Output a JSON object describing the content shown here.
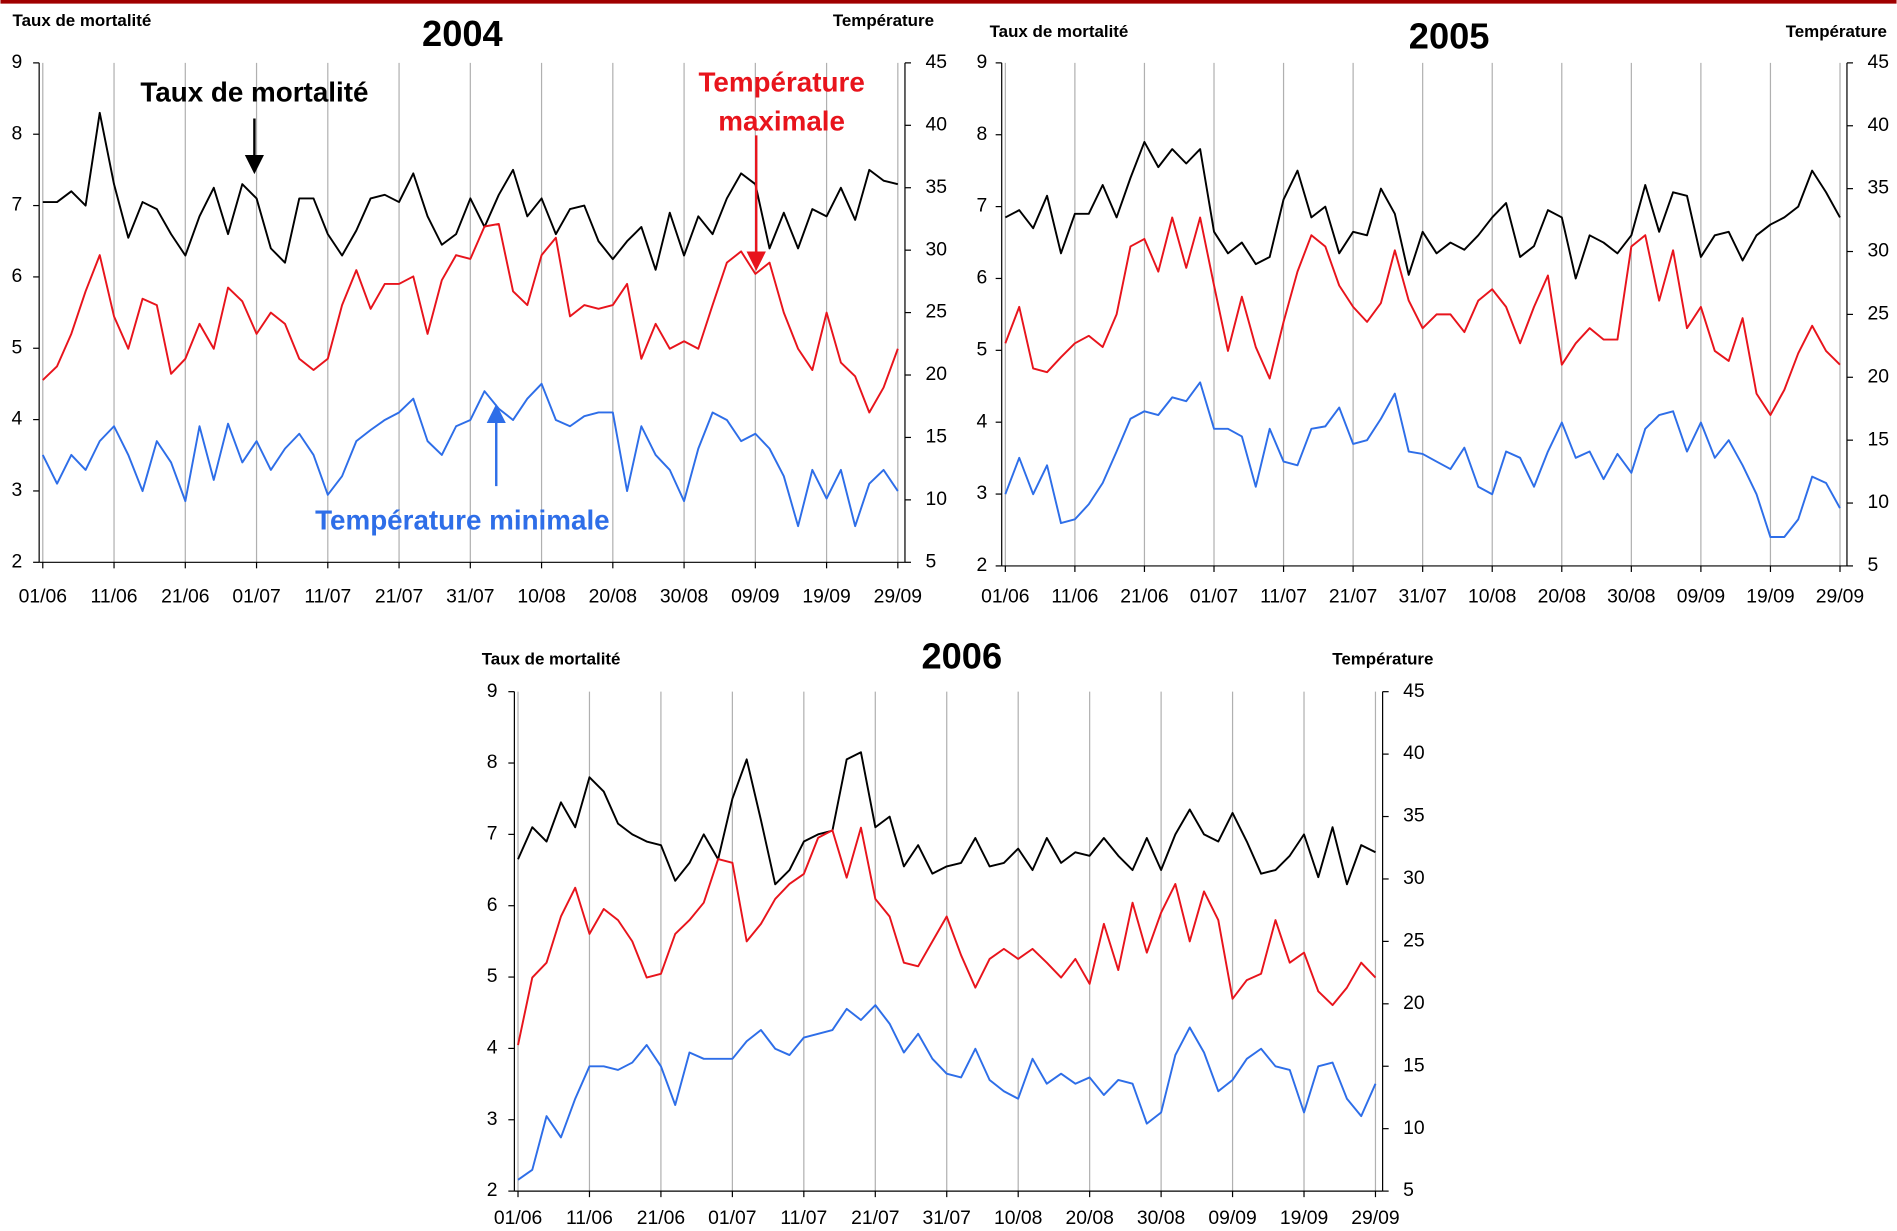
{
  "chart_data": [
    {
      "type": "line",
      "title": "2004",
      "y_label": "Taux de mortalité",
      "y2_label": "Température",
      "categories": [
        "01/06",
        null,
        null,
        null,
        null,
        "11/06",
        null,
        null,
        null,
        null,
        "21/06",
        null,
        null,
        null,
        null,
        "01/07",
        null,
        null,
        null,
        null,
        "11/07",
        null,
        null,
        null,
        null,
        "21/07",
        null,
        null,
        null,
        null,
        "31/07",
        null,
        null,
        null,
        null,
        "10/08",
        null,
        null,
        null,
        null,
        "20/08",
        null,
        null,
        null,
        null,
        "30/08",
        null,
        null,
        null,
        null,
        "09/09",
        null,
        null,
        null,
        null,
        "19/09",
        null,
        null,
        null,
        null,
        "29/09"
      ],
      "ylim": [
        2,
        9
      ],
      "yticks": [
        2,
        3,
        4,
        5,
        6,
        7,
        8,
        9
      ],
      "y2lim": [
        5,
        45
      ],
      "y2ticks": [
        5,
        10,
        15,
        20,
        25,
        30,
        35,
        40,
        45
      ],
      "xgrid": true,
      "series": [
        {
          "color": "#000000",
          "values": [
            7.05,
            7.05,
            7.2,
            7.0,
            8.3,
            7.3,
            6.55,
            7.05,
            6.95,
            6.6,
            6.3,
            6.85,
            7.25,
            6.6,
            7.3,
            7.1,
            6.4,
            6.2,
            7.1,
            7.1,
            6.6,
            6.3,
            6.65,
            7.1,
            7.15,
            7.05,
            7.45,
            6.85,
            6.45,
            6.6,
            7.1,
            6.7,
            7.15,
            7.5,
            6.85,
            7.1,
            6.6,
            6.95,
            7.0,
            6.5,
            6.25,
            6.5,
            6.7,
            6.1,
            6.9,
            6.3,
            6.85,
            6.6,
            7.1,
            7.45,
            7.3,
            6.4,
            6.9,
            6.4,
            6.95,
            6.85,
            7.25,
            6.8,
            7.5,
            7.35,
            7.3
          ]
        },
        {
          "color": "#e8141c",
          "axis": "y2",
          "values": [
            19.6,
            20.7,
            23.3,
            26.7,
            29.6,
            24.7,
            22.1,
            26.1,
            25.6,
            20.1,
            21.3,
            24.1,
            22.1,
            27,
            25.9,
            23.3,
            25,
            24.1,
            21.3,
            20.4,
            21.3,
            25.6,
            28.4,
            25.3,
            27.3,
            27.3,
            27.9,
            23.3,
            27.6,
            29.6,
            29.3,
            31.9,
            32.1,
            26.7,
            25.6,
            29.6,
            31,
            24.7,
            25.6,
            25.3,
            25.6,
            27.3,
            21.3,
            24.1,
            22.1,
            22.7,
            22.1,
            25.6,
            29,
            29.9,
            28.1,
            29,
            25,
            22.1,
            20.4,
            25,
            21,
            19.9,
            17,
            19,
            22.1
          ]
        },
        {
          "color": "#2e6ee8",
          "axis": "y2",
          "values": [
            13.6,
            11.3,
            13.6,
            12.4,
            14.7,
            15.9,
            13.6,
            10.7,
            14.7,
            13,
            9.9,
            15.9,
            11.6,
            16.1,
            13,
            14.7,
            12.4,
            14.1,
            15.3,
            13.6,
            10.4,
            11.9,
            14.7,
            15.6,
            16.4,
            17,
            18.1,
            14.7,
            13.6,
            15.9,
            16.4,
            18.7,
            17.3,
            16.4,
            18.1,
            19.3,
            16.4,
            15.9,
            16.7,
            17,
            17,
            10.7,
            15.9,
            13.6,
            12.4,
            9.9,
            14.1,
            17,
            16.4,
            14.7,
            15.3,
            14.1,
            11.9,
            7.9,
            12.4,
            10.1,
            12.4,
            7.9,
            11.3,
            12.4,
            10.7
          ]
        }
      ],
      "annotations": [
        {
          "lines": [
            "Taux de mortalité"
          ],
          "color": "#000000"
        },
        {
          "lines": [
            "Température",
            "maximale"
          ],
          "color": "#e8141c"
        },
        {
          "lines": [
            "Température minimale"
          ],
          "color": "#2e6ee8"
        }
      ]
    },
    {
      "type": "line",
      "title": "2005",
      "y_label": "Taux de mortalité",
      "y2_label": "Température",
      "categories": [
        "01/06",
        null,
        null,
        null,
        null,
        "11/06",
        null,
        null,
        null,
        null,
        "21/06",
        null,
        null,
        null,
        null,
        "01/07",
        null,
        null,
        null,
        null,
        "11/07",
        null,
        null,
        null,
        null,
        "21/07",
        null,
        null,
        null,
        null,
        "31/07",
        null,
        null,
        null,
        null,
        "10/08",
        null,
        null,
        null,
        null,
        "20/08",
        null,
        null,
        null,
        null,
        "30/08",
        null,
        null,
        null,
        null,
        "09/09",
        null,
        null,
        null,
        null,
        "19/09",
        null,
        null,
        null,
        null,
        "29/09"
      ],
      "ylim": [
        2,
        9
      ],
      "yticks": [
        2,
        3,
        4,
        5,
        6,
        7,
        8,
        9
      ],
      "y2lim": [
        5,
        45
      ],
      "y2ticks": [
        5,
        10,
        15,
        20,
        25,
        30,
        35,
        40,
        45
      ],
      "xgrid": true,
      "series": [
        {
          "color": "#000000",
          "values": [
            6.85,
            6.95,
            6.7,
            7.15,
            6.35,
            6.9,
            6.9,
            7.3,
            6.85,
            7.4,
            7.9,
            7.55,
            7.8,
            7.6,
            7.8,
            6.65,
            6.35,
            6.5,
            6.2,
            6.3,
            7.1,
            7.5,
            6.85,
            7.0,
            6.35,
            6.65,
            6.6,
            7.25,
            6.9,
            6.05,
            6.65,
            6.35,
            6.5,
            6.4,
            6.6,
            6.85,
            7.05,
            6.3,
            6.45,
            6.95,
            6.85,
            6.0,
            6.6,
            6.5,
            6.35,
            6.6,
            7.3,
            6.65,
            7.2,
            7.15,
            6.3,
            6.6,
            6.65,
            6.25,
            6.6,
            6.75,
            6.85,
            7.0,
            7.5,
            7.2,
            6.85
          ]
        },
        {
          "color": "#e8141c",
          "axis": "y2",
          "values": [
            22.7,
            25.6,
            20.7,
            20.4,
            21.6,
            22.7,
            23.3,
            22.4,
            25,
            30.4,
            31,
            28.4,
            32.7,
            28.7,
            32.7,
            27.3,
            22.1,
            26.4,
            22.4,
            19.9,
            24.4,
            28.4,
            31.3,
            30.4,
            27.3,
            25.6,
            24.4,
            25.9,
            30.1,
            26.1,
            23.9,
            25,
            25,
            23.6,
            26.1,
            27,
            25.6,
            22.7,
            25.6,
            28.1,
            21,
            22.7,
            23.9,
            23,
            23,
            30.4,
            31.3,
            26.1,
            30.1,
            23.9,
            25.6,
            22.1,
            21.3,
            24.7,
            18.7,
            17,
            19,
            21.9,
            24.1,
            22.1,
            21
          ]
        },
        {
          "color": "#2e6ee8",
          "axis": "y2",
          "values": [
            10.7,
            13.6,
            10.7,
            13,
            8.4,
            8.7,
            9.9,
            11.6,
            14.1,
            16.7,
            17.3,
            17,
            18.4,
            18.1,
            19.6,
            15.9,
            15.9,
            15.3,
            11.3,
            15.9,
            13.3,
            13,
            15.9,
            16.1,
            17.6,
            14.7,
            15,
            16.7,
            18.7,
            14.1,
            13.9,
            13.3,
            12.7,
            14.4,
            11.3,
            10.7,
            14.1,
            13.6,
            11.3,
            14.1,
            16.4,
            13.6,
            14.1,
            11.9,
            13.9,
            12.4,
            15.9,
            17,
            17.3,
            14.1,
            16.4,
            13.6,
            15,
            13,
            10.7,
            7.3,
            7.3,
            8.7,
            12.1,
            11.6,
            9.6
          ]
        }
      ]
    },
    {
      "type": "line",
      "title": "2006",
      "y_label": "Taux de mortalité",
      "y2_label": "Température",
      "categories": [
        "01/06",
        null,
        null,
        null,
        null,
        "11/06",
        null,
        null,
        null,
        null,
        "21/06",
        null,
        null,
        null,
        null,
        "01/07",
        null,
        null,
        null,
        null,
        "11/07",
        null,
        null,
        null,
        null,
        "21/07",
        null,
        null,
        null,
        null,
        "31/07",
        null,
        null,
        null,
        null,
        "10/08",
        null,
        null,
        null,
        null,
        "20/08",
        null,
        null,
        null,
        null,
        "30/08",
        null,
        null,
        null,
        null,
        "09/09",
        null,
        null,
        null,
        null,
        "19/09",
        null,
        null,
        null,
        null,
        "29/09"
      ],
      "ylim": [
        2,
        9
      ],
      "yticks": [
        2,
        3,
        4,
        5,
        6,
        7,
        8,
        9
      ],
      "y2lim": [
        5,
        45
      ],
      "y2ticks": [
        5,
        10,
        15,
        20,
        25,
        30,
        35,
        40,
        45
      ],
      "xgrid": true,
      "series": [
        {
          "color": "#000000",
          "values": [
            6.65,
            7.1,
            6.9,
            7.45,
            7.1,
            7.8,
            7.6,
            7.15,
            7.0,
            6.9,
            6.85,
            6.35,
            6.6,
            7.0,
            6.65,
            7.5,
            8.05,
            7.2,
            6.3,
            6.5,
            6.9,
            7.0,
            7.05,
            8.05,
            8.15,
            7.1,
            7.25,
            6.55,
            6.85,
            6.45,
            6.55,
            6.6,
            6.95,
            6.55,
            6.6,
            6.8,
            6.5,
            6.95,
            6.6,
            6.75,
            6.7,
            6.95,
            6.7,
            6.5,
            6.95,
            6.5,
            7.0,
            7.35,
            7.0,
            6.9,
            7.3,
            6.9,
            6.45,
            6.5,
            6.7,
            7.0,
            6.4,
            7.1,
            6.3,
            6.85,
            6.75
          ]
        },
        {
          "color": "#e8141c",
          "axis": "y2",
          "values": [
            16.7,
            22.1,
            23.3,
            27,
            29.3,
            25.6,
            27.6,
            26.7,
            25,
            22.1,
            22.4,
            25.6,
            26.7,
            28.1,
            31.6,
            31.3,
            25,
            26.4,
            28.4,
            29.6,
            30.4,
            33.3,
            33.9,
            30.1,
            34.1,
            28.4,
            27,
            23.3,
            23,
            25,
            27,
            23.9,
            21.3,
            23.6,
            24.4,
            23.6,
            24.4,
            23.3,
            22.1,
            23.6,
            21.6,
            26.4,
            22.7,
            28.1,
            24.1,
            27.3,
            29.6,
            25,
            29,
            26.7,
            20.4,
            21.9,
            22.4,
            26.7,
            23.3,
            24.1,
            21,
            19.9,
            21.3,
            23.3,
            22.1
          ]
        },
        {
          "color": "#2e6ee8",
          "axis": "y2",
          "values": [
            5.9,
            6.7,
            11,
            9.3,
            12.4,
            15,
            15,
            14.7,
            15.3,
            16.7,
            15,
            11.9,
            16.1,
            15.6,
            15.6,
            15.6,
            17,
            17.9,
            16.4,
            15.9,
            17.3,
            17.6,
            17.9,
            19.6,
            18.7,
            19.9,
            18.4,
            16.1,
            17.6,
            15.6,
            14.4,
            14.1,
            16.4,
            13.9,
            13,
            12.4,
            15.6,
            13.6,
            14.4,
            13.6,
            14.1,
            12.7,
            13.9,
            13.6,
            10.4,
            11.3,
            15.9,
            18.1,
            16.1,
            13,
            13.9,
            15.6,
            16.4,
            15,
            14.7,
            11.3,
            15,
            15.3,
            12.4,
            11,
            13.6
          ]
        }
      ]
    }
  ]
}
